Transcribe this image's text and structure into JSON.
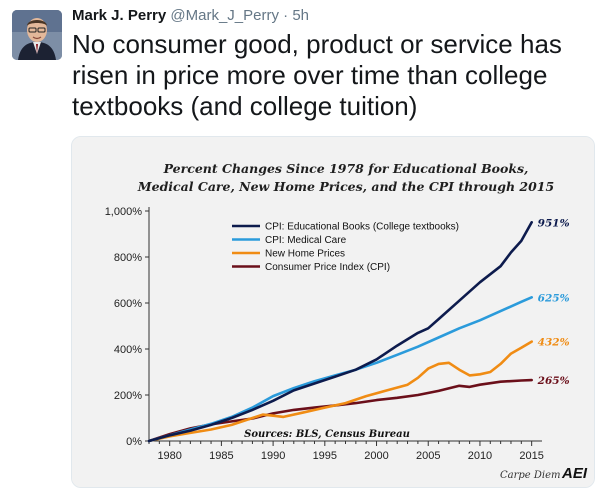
{
  "tweet": {
    "author_name": "Mark J. Perry",
    "author_handle": "@Mark_J_Perry",
    "separator": "·",
    "timestamp": "5h",
    "text": "No consumer good, product or service has risen in price more over time than college textbooks (and college tuition)",
    "avatar_icon": "user-avatar-icon"
  },
  "chart_data": {
    "type": "line",
    "title": "Percent Changes Since 1978 for Educational Books, Medical Care, New Home Prices, and the CPI through 2015",
    "title_lines": [
      "Percent Changes Since 1978 for Educational Books,",
      "Medical Care, New Home Prices, and the CPI through 2015"
    ],
    "xlabel": "",
    "ylabel": "",
    "xlim": [
      1978,
      2016
    ],
    "ylim": [
      0,
      1000
    ],
    "x_ticks": [
      1980,
      1985,
      1990,
      1995,
      2000,
      2005,
      2010,
      2015
    ],
    "y_ticks": [
      0,
      200,
      400,
      600,
      800,
      1000
    ],
    "y_tick_labels": [
      "0%",
      "200%",
      "400%",
      "600%",
      "800%",
      "1,000%"
    ],
    "grid": false,
    "legend_position": "top-center",
    "source": "Sources: BLS, Census Bureau",
    "brand": "Carpe Diem",
    "brand_logo": "AEI",
    "series": [
      {
        "name": "CPI: Educational Books (College textbooks)",
        "color": "#0d1b4d",
        "end_label": "951%",
        "x": [
          1978,
          1980,
          1982,
          1984,
          1986,
          1988,
          1990,
          1992,
          1994,
          1996,
          1998,
          2000,
          2002,
          2004,
          2005,
          2006,
          2008,
          2010,
          2012,
          2013,
          2014,
          2015
        ],
        "values": [
          0,
          25,
          45,
          70,
          100,
          135,
          175,
          220,
          250,
          280,
          310,
          355,
          415,
          470,
          490,
          530,
          610,
          690,
          760,
          820,
          870,
          951
        ]
      },
      {
        "name": "CPI: Medical Care",
        "color": "#2b9bdb",
        "end_label": "625%",
        "x": [
          1978,
          1980,
          1982,
          1984,
          1986,
          1988,
          1990,
          1992,
          1994,
          1996,
          1998,
          2000,
          2002,
          2004,
          2006,
          2008,
          2010,
          2012,
          2014,
          2015
        ],
        "values": [
          0,
          25,
          50,
          75,
          105,
          145,
          195,
          230,
          260,
          285,
          310,
          340,
          375,
          410,
          450,
          490,
          525,
          565,
          605,
          625
        ]
      },
      {
        "name": "New Home Prices",
        "color": "#f08c14",
        "end_label": "432%",
        "x": [
          1978,
          1980,
          1982,
          1984,
          1986,
          1988,
          1989,
          1990,
          1991,
          1993,
          1995,
          1997,
          1999,
          2001,
          2003,
          2004,
          2005,
          2006,
          2007,
          2008,
          2009,
          2010,
          2011,
          2012,
          2013,
          2014,
          2015
        ],
        "values": [
          0,
          20,
          35,
          50,
          70,
          100,
          115,
          110,
          105,
          125,
          145,
          165,
          195,
          220,
          245,
          275,
          315,
          335,
          340,
          310,
          285,
          290,
          300,
          335,
          380,
          405,
          432
        ]
      },
      {
        "name": "Consumer Price Index (CPI)",
        "color": "#6b0f1a",
        "end_label": "265%",
        "x": [
          1978,
          1980,
          1982,
          1984,
          1986,
          1988,
          1990,
          1992,
          1994,
          1996,
          1998,
          2000,
          2002,
          2004,
          2006,
          2008,
          2009,
          2010,
          2012,
          2014,
          2015
        ],
        "values": [
          0,
          30,
          55,
          72,
          85,
          98,
          120,
          135,
          145,
          155,
          165,
          178,
          188,
          200,
          218,
          240,
          235,
          245,
          258,
          263,
          265
        ]
      }
    ]
  }
}
